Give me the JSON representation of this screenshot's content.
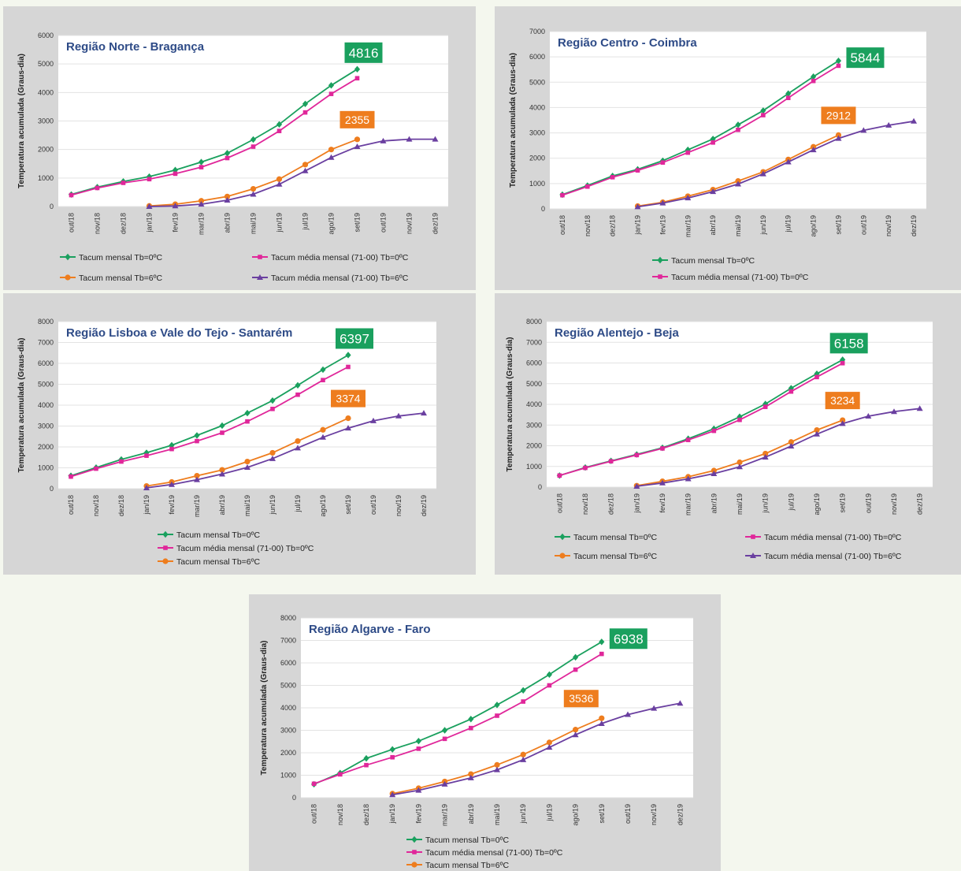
{
  "colors": {
    "green": "#1aa05e",
    "magenta": "#e0279a",
    "orange": "#ee7d1e",
    "purple": "#6a3fa0",
    "title": "#2e4b87",
    "panel_bg": "#d6d6d6",
    "plot_bg": "#ffffff"
  },
  "months": [
    "out/18",
    "nov/18",
    "dez/18",
    "jan/19",
    "fev/19",
    "mar/19",
    "abr/19",
    "mai/19",
    "jun/19",
    "jul/19",
    "ago/19",
    "set/19",
    "out/19",
    "nov/19",
    "dez/19"
  ],
  "ylabel": "Temperatura acumulada (Graus-dia)",
  "chart_data": [
    {
      "type": "line",
      "title": "Região Norte - Bragança",
      "ylabel": "Temperatura acumulada (Graus-dia)",
      "ylim": [
        0,
        6000
      ],
      "yticks": [
        0,
        1000,
        2000,
        3000,
        4000,
        5000,
        6000
      ],
      "categories": [
        "out/18",
        "nov/18",
        "dez/18",
        "jan/19",
        "fev/19",
        "mar/19",
        "abr/19",
        "mai/19",
        "jun/19",
        "jul/19",
        "ago/19",
        "set/19",
        "out/19",
        "nov/19",
        "dez/19"
      ],
      "series": [
        {
          "name": "Tacum mensal Tb=0ºC",
          "color": "green",
          "marker": "diamond",
          "values": [
            420,
            680,
            880,
            1050,
            1280,
            1560,
            1870,
            2350,
            2880,
            3600,
            4250,
            4816,
            null,
            null,
            null
          ]
        },
        {
          "name": "Tacum média mensal (71-00) Tb=0ºC",
          "color": "magenta",
          "marker": "square",
          "values": [
            400,
            650,
            830,
            960,
            1150,
            1380,
            1700,
            2100,
            2650,
            3300,
            3950,
            4500,
            null,
            null,
            null
          ]
        },
        {
          "name": "Tacum mensal Tb=6ºC",
          "color": "orange",
          "marker": "circle",
          "values": [
            null,
            null,
            null,
            20,
            80,
            200,
            350,
            620,
            960,
            1470,
            2000,
            2355,
            null,
            null,
            null
          ]
        },
        {
          "name": "Tacum média mensal (71-00) Tb=6ºC",
          "color": "purple",
          "marker": "triangle",
          "values": [
            null,
            null,
            null,
            0,
            20,
            80,
            220,
            430,
            780,
            1250,
            1720,
            2100,
            2300,
            2360,
            2360
          ]
        }
      ],
      "annotations": [
        {
          "text": "4816",
          "color": "green",
          "x_index": 11,
          "value": 4816
        },
        {
          "text": "2355",
          "color": "orange",
          "x_index": 11,
          "value": 2355
        }
      ],
      "legend": "bottom, two columns",
      "legend_entries": [
        "Tacum mensal Tb=0ºC",
        "Tacum média mensal (71-00) Tb=0ºC",
        "Tacum mensal Tb=6ºC",
        "Tacum média mensal (71-00) Tb=6ºC"
      ]
    },
    {
      "type": "line",
      "title": "Região Centro - Coimbra",
      "ylabel": "Temperatura acumulada (Graus-dia)",
      "ylim": [
        0,
        7000
      ],
      "yticks": [
        0,
        1000,
        2000,
        3000,
        4000,
        5000,
        6000,
        7000
      ],
      "categories": [
        "out/18",
        "nov/18",
        "dez/18",
        "jan/19",
        "fev/19",
        "mar/19",
        "abr/19",
        "mai/19",
        "jun/19",
        "jul/19",
        "ago/19",
        "set/19",
        "out/19",
        "nov/19",
        "dez/19"
      ],
      "series": [
        {
          "name": "Tacum mensal Tb=0ºC",
          "color": "green",
          "marker": "diamond",
          "values": [
            560,
            920,
            1300,
            1560,
            1900,
            2330,
            2760,
            3320,
            3880,
            4550,
            5220,
            5844,
            null,
            null,
            null
          ]
        },
        {
          "name": "Tacum média mensal (71-00) Tb=0ºC",
          "color": "magenta",
          "marker": "square",
          "values": [
            540,
            880,
            1250,
            1520,
            1830,
            2220,
            2620,
            3120,
            3700,
            4380,
            5050,
            5650,
            null,
            null,
            null
          ]
        },
        {
          "name": "Tacum mensal Tb=6ºC",
          "color": "orange",
          "marker": "circle",
          "values": [
            null,
            null,
            null,
            110,
            260,
            500,
            760,
            1100,
            1460,
            1950,
            2450,
            2912,
            null,
            null,
            null
          ]
        },
        {
          "name": "Tacum média mensal (71-00) Tb=6ºC",
          "color": "purple",
          "marker": "triangle",
          "values": [
            null,
            null,
            null,
            80,
            230,
            430,
            680,
            980,
            1380,
            1850,
            2330,
            2780,
            3100,
            3300,
            3460
          ]
        }
      ],
      "annotations": [
        {
          "text": "5844",
          "color": "green",
          "x_index": 11,
          "value": 5844
        },
        {
          "text": "2912",
          "color": "orange",
          "x_index": 11,
          "value": 2912
        }
      ],
      "legend": "bottom",
      "legend_entries": [
        "Tacum mensal Tb=0ºC",
        "Tacum média mensal (71-00) Tb=0ºC"
      ]
    },
    {
      "type": "line",
      "title": "Região Lisboa e Vale do Tejo - Santarém",
      "ylabel": "Temperatura acumulada (Graus-dia)",
      "ylim": [
        0,
        8000
      ],
      "yticks": [
        0,
        1000,
        2000,
        3000,
        4000,
        5000,
        6000,
        7000,
        8000
      ],
      "categories": [
        "out/18",
        "nov/18",
        "dez/18",
        "jan/19",
        "fev/19",
        "mar/19",
        "abr/19",
        "mai/19",
        "jun/19",
        "jul/19",
        "ago/19",
        "set/19",
        "out/19",
        "nov/19",
        "dez/19"
      ],
      "series": [
        {
          "name": "Tacum mensal Tb=0ºC",
          "color": "green",
          "marker": "diamond",
          "values": [
            620,
            1010,
            1400,
            1720,
            2080,
            2550,
            3020,
            3620,
            4220,
            4950,
            5700,
            6397,
            null,
            null,
            null
          ]
        },
        {
          "name": "Tacum média mensal (71-00) Tb=0ºC",
          "color": "magenta",
          "marker": "square",
          "values": [
            580,
            960,
            1300,
            1580,
            1900,
            2280,
            2680,
            3220,
            3820,
            4500,
            5200,
            5830,
            null,
            null,
            null
          ]
        },
        {
          "name": "Tacum mensal Tb=6ºC",
          "color": "orange",
          "marker": "circle",
          "values": [
            null,
            null,
            null,
            130,
            320,
            620,
            900,
            1300,
            1720,
            2280,
            2820,
            3374,
            null,
            null,
            null
          ]
        },
        {
          "name": "Tacum média mensal (71-00) Tb=6ºC",
          "color": "purple",
          "marker": "triangle",
          "values": [
            null,
            null,
            null,
            40,
            200,
            430,
            700,
            1020,
            1440,
            1950,
            2460,
            2900,
            3250,
            3480,
            3620
          ]
        }
      ],
      "annotations": [
        {
          "text": "6397",
          "color": "green",
          "x_index": 11,
          "value": 6397
        },
        {
          "text": "3374",
          "color": "orange",
          "x_index": 11,
          "value": 3374
        }
      ],
      "legend": "bottom",
      "legend_entries": [
        "Tacum mensal Tb=0ºC",
        "Tacum média mensal (71-00) Tb=0ºC",
        "Tacum mensal Tb=6ºC"
      ]
    },
    {
      "type": "line",
      "title": "Região Alentejo - Beja",
      "ylabel": "Temperatura acumulada (Graus-dia)",
      "ylim": [
        0,
        8000
      ],
      "yticks": [
        0,
        1000,
        2000,
        3000,
        4000,
        5000,
        6000,
        7000,
        8000
      ],
      "categories": [
        "out/18",
        "nov/18",
        "dez/18",
        "jan/19",
        "fev/19",
        "mar/19",
        "abr/19",
        "mai/19",
        "jun/19",
        "jul/19",
        "ago/19",
        "set/19",
        "out/19",
        "nov/19",
        "dez/19"
      ],
      "series": [
        {
          "name": "Tacum mensal Tb=0ºC",
          "color": "green",
          "marker": "diamond",
          "values": [
            560,
            950,
            1270,
            1580,
            1900,
            2340,
            2820,
            3400,
            4020,
            4780,
            5480,
            6158,
            null,
            null,
            null
          ]
        },
        {
          "name": "Tacum média mensal (71-00) Tb=0ºC",
          "color": "magenta",
          "marker": "square",
          "values": [
            560,
            930,
            1250,
            1550,
            1870,
            2280,
            2720,
            3250,
            3880,
            4620,
            5320,
            5990,
            null,
            null,
            null
          ]
        },
        {
          "name": "Tacum mensal Tb=6ºC",
          "color": "orange",
          "marker": "circle",
          "values": [
            null,
            null,
            null,
            70,
            280,
            500,
            800,
            1200,
            1620,
            2180,
            2760,
            3234,
            null,
            null,
            null
          ]
        },
        {
          "name": "Tacum média mensal (71-00) Tb=6ºC",
          "color": "purple",
          "marker": "triangle",
          "values": [
            null,
            null,
            null,
            40,
            200,
            400,
            650,
            980,
            1450,
            1980,
            2560,
            3070,
            3430,
            3650,
            3800
          ]
        }
      ],
      "annotations": [
        {
          "text": "6158",
          "color": "green",
          "x_index": 11,
          "value": 6158
        },
        {
          "text": "3234",
          "color": "orange",
          "x_index": 11,
          "value": 3234
        }
      ],
      "legend": "bottom, two columns",
      "legend_entries": [
        "Tacum mensal Tb=0ºC",
        "Tacum média mensal (71-00) Tb=0ºC",
        "Tacum mensal Tb=6ºC",
        "Tacum média mensal (71-00) Tb=6ºC"
      ]
    },
    {
      "type": "line",
      "title": "Região Algarve - Faro",
      "ylabel": "Temperatura acumulada (Graus-dia)",
      "ylim": [
        0,
        8000
      ],
      "yticks": [
        0,
        1000,
        2000,
        3000,
        4000,
        5000,
        6000,
        7000,
        8000
      ],
      "categories": [
        "out/18",
        "nov/18",
        "dez/18",
        "jan/19",
        "fev/19",
        "mar/19",
        "abr/19",
        "mai/19",
        "jun/19",
        "jul/19",
        "ago/19",
        "set/19",
        "out/19",
        "nov/19",
        "dez/19"
      ],
      "series": [
        {
          "name": "Tacum mensal Tb=0ºC",
          "color": "green",
          "marker": "diamond",
          "values": [
            600,
            1100,
            1750,
            2150,
            2520,
            3000,
            3500,
            4130,
            4780,
            5480,
            6250,
            6938,
            null,
            null,
            null
          ]
        },
        {
          "name": "Tacum média mensal (71-00) Tb=0ºC",
          "color": "magenta",
          "marker": "square",
          "values": [
            620,
            1040,
            1450,
            1800,
            2180,
            2620,
            3100,
            3650,
            4280,
            5000,
            5700,
            6400,
            null,
            null,
            null
          ]
        },
        {
          "name": "Tacum mensal Tb=6ºC",
          "color": "orange",
          "marker": "circle",
          "values": [
            null,
            null,
            null,
            180,
            420,
            720,
            1050,
            1460,
            1920,
            2460,
            3030,
            3536,
            null,
            null,
            null
          ]
        },
        {
          "name": "Tacum média mensal (71-00) Tb=6ºC",
          "color": "purple",
          "marker": "triangle",
          "values": [
            null,
            null,
            null,
            130,
            330,
            600,
            880,
            1240,
            1690,
            2240,
            2800,
            3300,
            3700,
            3980,
            4200
          ]
        }
      ],
      "annotations": [
        {
          "text": "6938",
          "color": "green",
          "x_index": 11,
          "value": 6938
        },
        {
          "text": "3536",
          "color": "orange",
          "x_index": 11,
          "value": 3536
        }
      ],
      "legend": "bottom",
      "legend_entries": [
        "Tacum mensal Tb=0ºC",
        "Tacum média mensal (71-00) Tb=0ºC",
        "Tacum mensal Tb=6ºC"
      ]
    }
  ]
}
